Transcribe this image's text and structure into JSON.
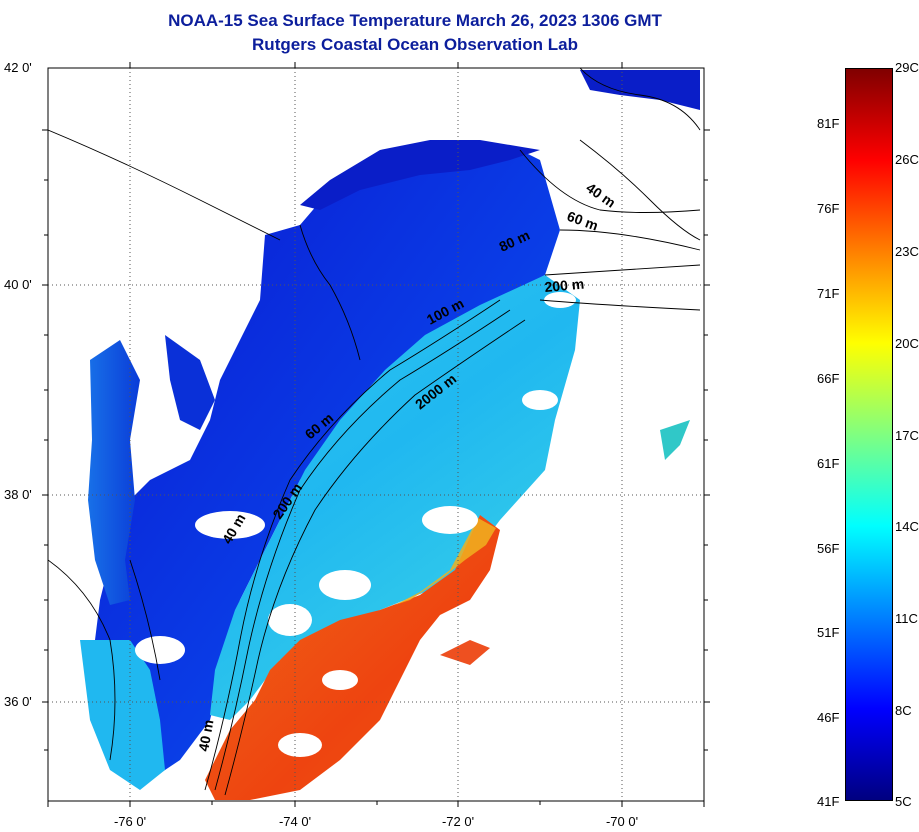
{
  "title": {
    "line1": "NOAA-15 Sea Surface Temperature March 26, 2023 1306 GMT",
    "line2": "Rutgers Coastal Ocean Observation Lab"
  },
  "map": {
    "lat_labels": [
      "42 0'",
      "40 0'",
      "38 0'",
      "36 0'"
    ],
    "lon_labels": [
      "-76 0'",
      "-74 0'",
      "-72 0'",
      "-70 0'"
    ],
    "contour_labels": [
      "40 m",
      "60 m",
      "80 m",
      "200 m",
      "100 m",
      "2000 m",
      "60 m",
      "200 m",
      "40 m",
      "40 m"
    ],
    "colors": {
      "land": "#ffffff",
      "cold": "#0a1ec8",
      "mid": "#19c8f0",
      "warm": "#f04a10"
    }
  },
  "colorbar": {
    "celsius_labels": [
      "29C",
      "26C",
      "23C",
      "20C",
      "17C",
      "14C",
      "11C",
      "8C",
      "5C"
    ],
    "fahrenheit_labels": [
      "81F",
      "76F",
      "71F",
      "66F",
      "61F",
      "56F",
      "51F",
      "46F",
      "41F"
    ],
    "range_c": [
      5,
      29
    ],
    "gradient_colors": [
      "#000080",
      "#0000ff",
      "#0080ff",
      "#00ffff",
      "#80ff80",
      "#ffff00",
      "#ff8000",
      "#ff0000",
      "#800000"
    ]
  }
}
